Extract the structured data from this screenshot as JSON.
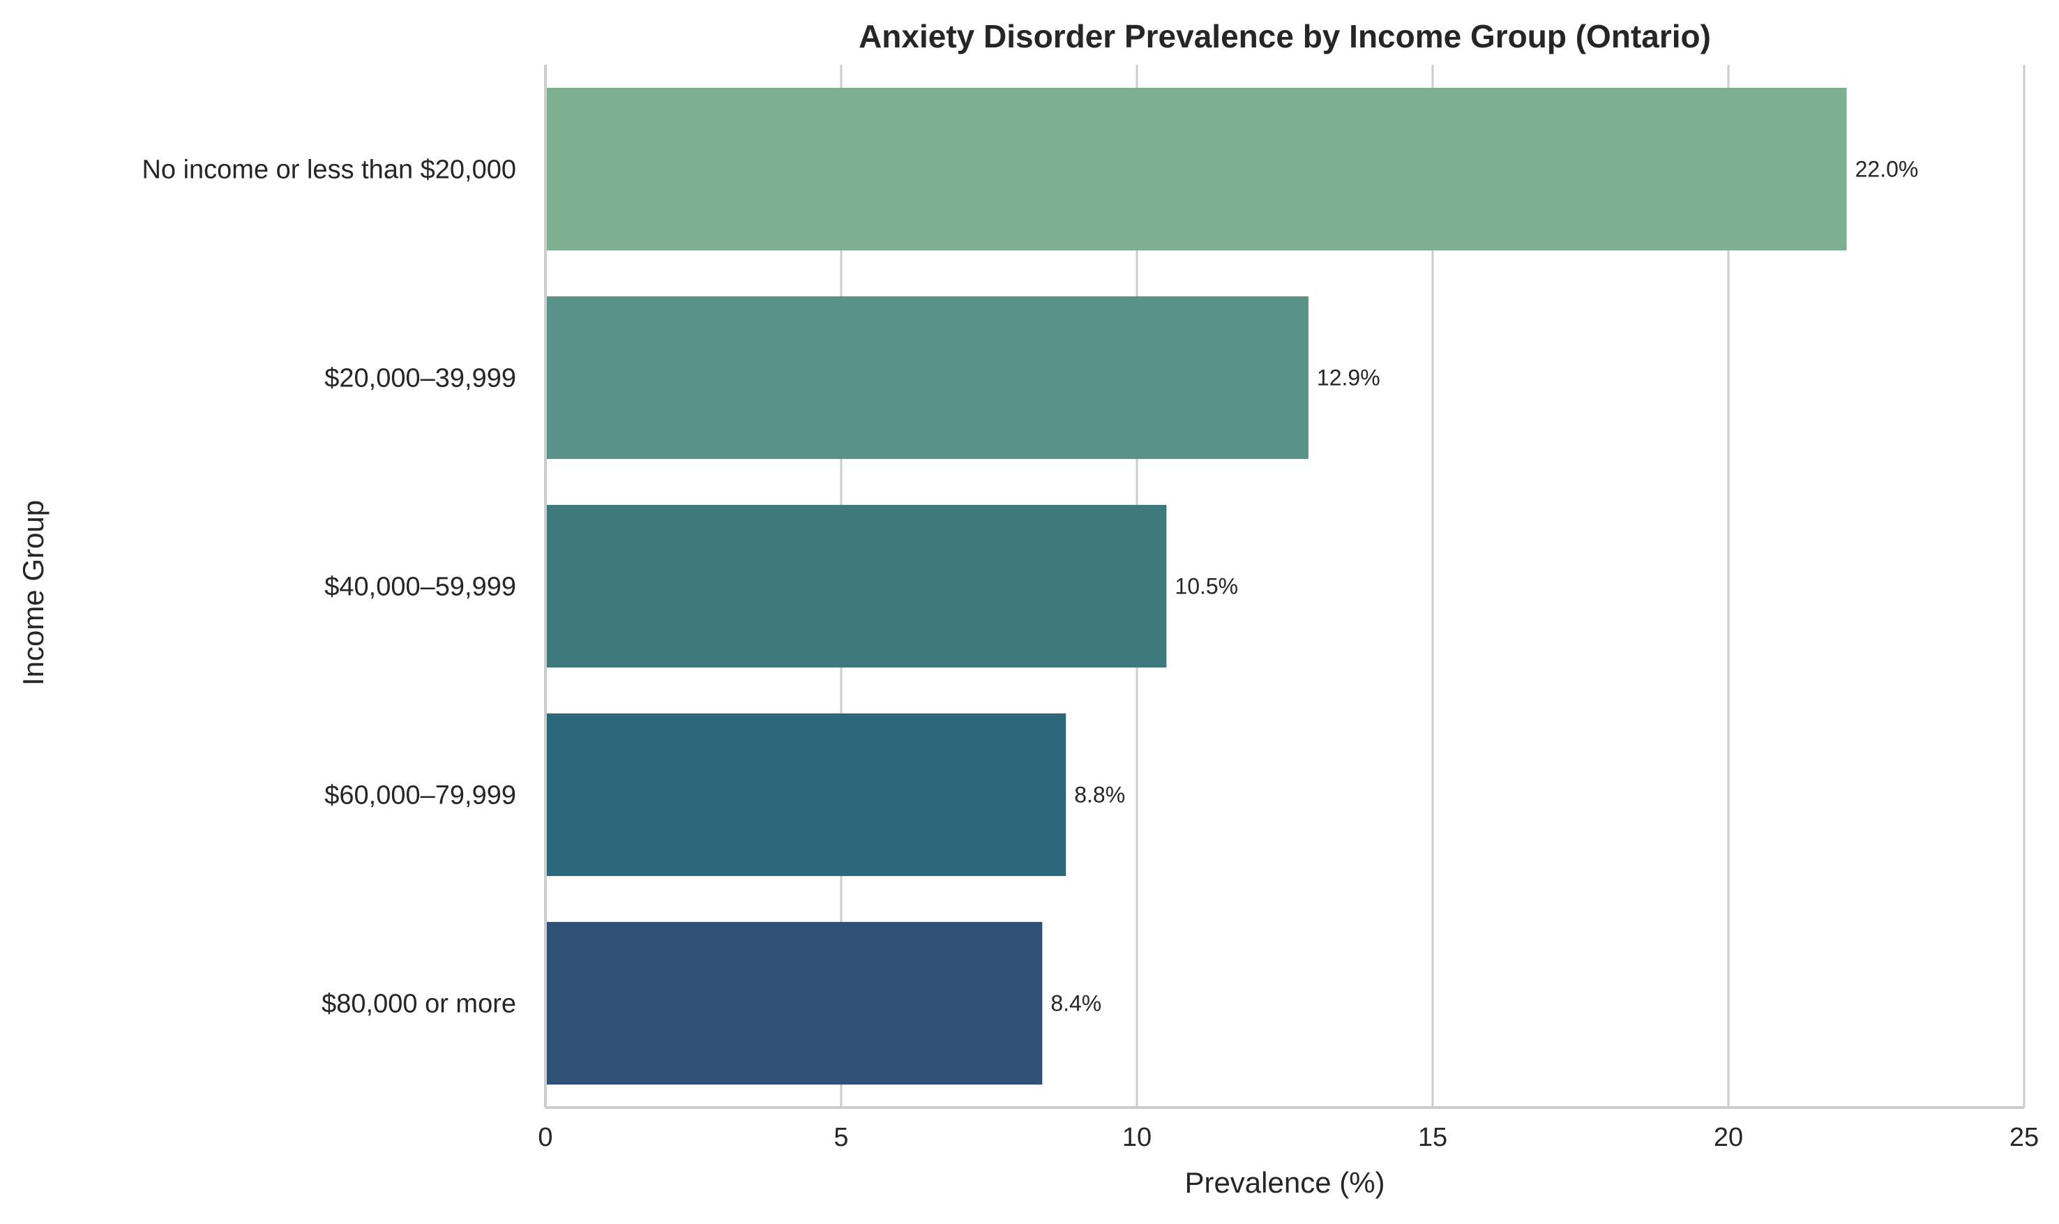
{
  "chart_data": {
    "type": "bar",
    "orientation": "horizontal",
    "title": "Anxiety Disorder Prevalence by Income Group (Ontario)",
    "xlabel": "Prevalence (%)",
    "ylabel": "Income Group",
    "categories": [
      "No income or less than $20,000",
      "$20,000–39,999",
      "$40,000–59,999",
      "$60,000–79,999",
      "$80,000 or more"
    ],
    "values": [
      22.0,
      12.9,
      10.5,
      8.8,
      8.4
    ],
    "value_labels": [
      "22.0%",
      "12.9%",
      "10.5%",
      "8.8%",
      "8.4%"
    ],
    "colors": [
      "#7faf91",
      "#5a9288",
      "#3e797e",
      "#2c677b",
      "#2f5175"
    ],
    "xlim": [
      0,
      25
    ],
    "xticks": [
      0,
      5,
      10,
      15,
      20,
      25
    ],
    "xtick_labels": [
      "0",
      "5",
      "10",
      "15",
      "20",
      "25"
    ],
    "grid": "vertical",
    "legend": "none"
  }
}
